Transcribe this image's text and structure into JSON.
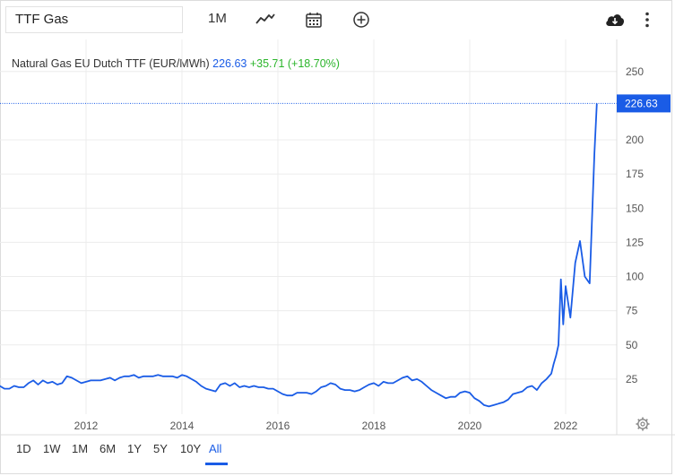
{
  "toolbar": {
    "search_value": "TTF Gas",
    "interval_label": "1M",
    "icons": [
      "line-chart-icon",
      "calendar-icon",
      "plus-circle-icon",
      "cloud-download-icon",
      "more-vertical-icon"
    ]
  },
  "legend": {
    "name": "Natural Gas EU Dutch TTF (EUR/MWh)",
    "price": "226.63",
    "change": "+35.71 (+18.70%)"
  },
  "colors": {
    "line": "#1a5ce6",
    "up": "#2bb52b",
    "grid": "#ececec"
  },
  "range_buttons": [
    "1D",
    "1W",
    "1M",
    "6M",
    "1Y",
    "5Y",
    "10Y",
    "All"
  ],
  "active_range": "All",
  "last_price_label": "226.63",
  "chart_data": {
    "type": "line",
    "title": "",
    "xlabel": "",
    "ylabel": "",
    "ylim": [
      0,
      262
    ],
    "xlim": [
      2010.0,
      2022.9
    ],
    "grid": true,
    "yticks": [
      25,
      50,
      75,
      100,
      125,
      150,
      175,
      200,
      250
    ],
    "xticks": [
      2012,
      2014,
      2016,
      2018,
      2020,
      2022
    ],
    "series": [
      {
        "name": "",
        "x": [
          2010.0,
          2010.1,
          2010.2,
          2010.3,
          2010.4,
          2010.5,
          2010.6,
          2010.7,
          2010.8,
          2010.9,
          2011.0,
          2011.1,
          2011.2,
          2011.3,
          2011.4,
          2011.5,
          2011.6,
          2011.7,
          2011.8,
          2011.9,
          2012.0,
          2012.1,
          2012.2,
          2012.3,
          2012.4,
          2012.5,
          2012.6,
          2012.7,
          2012.8,
          2012.9,
          2013.0,
          2013.1,
          2013.2,
          2013.3,
          2013.4,
          2013.5,
          2013.6,
          2013.7,
          2013.8,
          2013.9,
          2014.0,
          2014.1,
          2014.2,
          2014.3,
          2014.4,
          2014.5,
          2014.6,
          2014.7,
          2014.8,
          2014.9,
          2015.0,
          2015.1,
          2015.2,
          2015.3,
          2015.4,
          2015.5,
          2015.6,
          2015.7,
          2015.8,
          2015.9,
          2016.0,
          2016.1,
          2016.2,
          2016.3,
          2016.4,
          2016.5,
          2016.6,
          2016.7,
          2016.8,
          2016.9,
          2017.0,
          2017.1,
          2017.2,
          2017.3,
          2017.4,
          2017.5,
          2017.6,
          2017.7,
          2017.8,
          2017.9,
          2018.0,
          2018.1,
          2018.2,
          2018.3,
          2018.4,
          2018.5,
          2018.6,
          2018.7,
          2018.8,
          2018.9,
          2019.0,
          2019.1,
          2019.2,
          2019.3,
          2019.4,
          2019.5,
          2019.6,
          2019.7,
          2019.8,
          2019.9,
          2020.0,
          2020.1,
          2020.2,
          2020.3,
          2020.4,
          2020.5,
          2020.6,
          2020.7,
          2020.8,
          2020.9,
          2021.0,
          2021.1,
          2021.2,
          2021.3,
          2021.4,
          2021.5,
          2021.6,
          2021.7,
          2021.75,
          2021.8,
          2021.85,
          2021.9,
          2021.95,
          2022.0,
          2022.1,
          2022.15,
          2022.2,
          2022.3,
          2022.4,
          2022.5,
          2022.6,
          2022.65
        ],
        "y": [
          12,
          15,
          20,
          18,
          18,
          20,
          19,
          19,
          22,
          24,
          21,
          24,
          22,
          23,
          21,
          22,
          27,
          26,
          24,
          22,
          23,
          24,
          24,
          24,
          25,
          26,
          24,
          26,
          27,
          27,
          28,
          26,
          27,
          27,
          27,
          28,
          27,
          27,
          27,
          26,
          28,
          27,
          25,
          23,
          20,
          18,
          17,
          16,
          21,
          22,
          20,
          22,
          19,
          20,
          19,
          20,
          19,
          19,
          18,
          18,
          16,
          14,
          13,
          13,
          15,
          15,
          15,
          14,
          16,
          19,
          20,
          22,
          21,
          18,
          17,
          17,
          16,
          17,
          19,
          21,
          22,
          20,
          23,
          22,
          22,
          24,
          26,
          27,
          24,
          25,
          23,
          20,
          17,
          15,
          13,
          11,
          12,
          12,
          15,
          16,
          15,
          11,
          9,
          6,
          5,
          6,
          7,
          8,
          10,
          14,
          15,
          16,
          19,
          20,
          17,
          22,
          25,
          29,
          36,
          42,
          50,
          98,
          65,
          93,
          70,
          90,
          110,
          126,
          100,
          95,
          190,
          226.63
        ]
      }
    ]
  }
}
